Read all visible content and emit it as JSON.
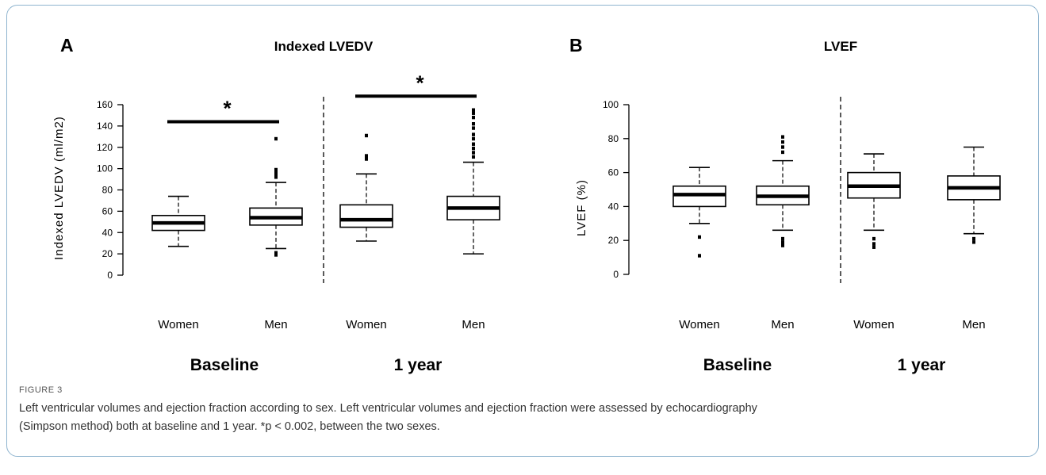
{
  "chart_data": [
    {
      "type": "box",
      "panel_label": "A",
      "title": "Indexed LVEDV",
      "ylabel": "Indexed LVEDV (ml/m2)",
      "ylim": [
        0,
        160
      ],
      "yticks": [
        0,
        20,
        40,
        60,
        80,
        100,
        120,
        140,
        160
      ],
      "groups": [
        "Baseline",
        "1 year"
      ],
      "categories": [
        "Women",
        "Men",
        "Women",
        "Men"
      ],
      "boxes": [
        {
          "group": "Baseline",
          "category": "Women",
          "whisker_low": 27,
          "q1": 42,
          "median": 49,
          "q3": 56,
          "whisker_high": 74,
          "outliers": []
        },
        {
          "group": "Baseline",
          "category": "Men",
          "whisker_low": 25,
          "q1": 47,
          "median": 54,
          "q3": 63,
          "whisker_high": 87,
          "outliers": [
            19,
            21,
            92,
            94,
            97,
            99,
            128
          ]
        },
        {
          "group": "1 year",
          "category": "Women",
          "whisker_low": 32,
          "q1": 45,
          "median": 52,
          "q3": 66,
          "whisker_high": 95,
          "outliers": [
            109,
            112,
            131
          ]
        },
        {
          "group": "1 year",
          "category": "Men",
          "whisker_low": 20,
          "q1": 52,
          "median": 63,
          "q3": 74,
          "whisker_high": 106,
          "outliers": [
            111,
            115,
            119,
            123,
            128,
            132,
            138,
            142,
            148,
            152,
            155
          ]
        }
      ],
      "significance": [
        {
          "group": "Baseline",
          "symbol": "*",
          "y": 144
        },
        {
          "group": "1 year",
          "symbol": "*",
          "y": 168
        }
      ]
    },
    {
      "type": "box",
      "panel_label": "B",
      "title": "LVEF",
      "ylabel": "LVEF (%)",
      "ylim": [
        0,
        100
      ],
      "yticks": [
        0,
        20,
        40,
        60,
        80,
        100
      ],
      "groups": [
        "Baseline",
        "1 year"
      ],
      "categories": [
        "Women",
        "Men",
        "Women",
        "Men"
      ],
      "boxes": [
        {
          "group": "Baseline",
          "category": "Women",
          "whisker_low": 30,
          "q1": 40,
          "median": 47,
          "q3": 52,
          "whisker_high": 63,
          "outliers": [
            11,
            22
          ]
        },
        {
          "group": "Baseline",
          "category": "Men",
          "whisker_low": 26,
          "q1": 41,
          "median": 46,
          "q3": 52,
          "whisker_high": 67,
          "outliers": [
            17,
            19,
            21,
            72,
            75,
            78,
            81
          ]
        },
        {
          "group": "1 year",
          "category": "Women",
          "whisker_low": 26,
          "q1": 45,
          "median": 52,
          "q3": 60,
          "whisker_high": 71,
          "outliers": [
            16,
            18,
            21
          ]
        },
        {
          "group": "1 year",
          "category": "Men",
          "whisker_low": 24,
          "q1": 44,
          "median": 51,
          "q3": 58,
          "whisker_high": 75,
          "outliers": [
            19,
            21
          ]
        }
      ],
      "significance": []
    }
  ],
  "caption": {
    "label": "FIGURE 3",
    "line1": "Left ventricular volumes and ejection fraction according to sex. Left ventricular volumes and ejection fraction were assessed by echocardiography",
    "line2": "(Simpson method) both at baseline and 1 year. *p < 0.002, between the two sexes."
  }
}
